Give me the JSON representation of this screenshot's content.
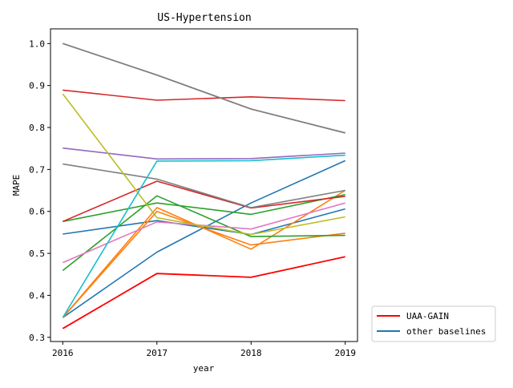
{
  "chart_data": {
    "type": "line",
    "title": "US-Hypertension",
    "xlabel": "year",
    "ylabel": "MAPE",
    "x": [
      2016,
      2017,
      2018,
      2019
    ],
    "xlim": [
      2015.87,
      2019.13
    ],
    "ylim": [
      0.29,
      1.035
    ],
    "yticks": [
      0.3,
      0.4,
      0.5,
      0.6,
      0.7,
      0.8,
      0.9,
      1.0
    ],
    "ytick_labels": [
      "0.3",
      "0.4",
      "0.5",
      "0.6",
      "0.7",
      "0.8",
      "0.9",
      "1.0"
    ],
    "xtick_labels": [
      "2016",
      "2017",
      "2018",
      "2019"
    ],
    "grid": false,
    "legend_placement": "outside-bottom-right",
    "legend": [
      {
        "label": "UAA-GAIN",
        "color": "#ff0000"
      },
      {
        "label": "other baselines",
        "color": "#1f77b4"
      }
    ],
    "series": [
      {
        "name": "UAA-GAIN",
        "color": "#ff0000",
        "values": [
          0.321,
          0.452,
          0.443,
          0.492
        ]
      },
      {
        "color": "#1f77b4",
        "values": [
          0.347,
          0.503,
          0.62,
          0.721
        ]
      },
      {
        "color": "#1f77b4",
        "values": [
          0.546,
          0.578,
          0.545,
          0.606
        ]
      },
      {
        "color": "#ff7f0e",
        "values": [
          0.347,
          0.609,
          0.51,
          0.65
        ]
      },
      {
        "color": "#ff7f0e",
        "values": [
          0.347,
          0.6,
          0.52,
          0.548
        ]
      },
      {
        "color": "#2ca02c",
        "values": [
          0.459,
          0.637,
          0.54,
          0.543
        ]
      },
      {
        "color": "#2ca02c",
        "values": [
          0.576,
          0.62,
          0.593,
          0.64
        ]
      },
      {
        "color": "#d62728",
        "values": [
          0.889,
          0.865,
          0.873,
          0.864
        ]
      },
      {
        "color": "#d62728",
        "values": [
          0.576,
          0.672,
          0.608,
          0.636
        ]
      },
      {
        "color": "#9467bd",
        "values": [
          0.751,
          0.725,
          0.726,
          0.739
        ]
      },
      {
        "color": "#8c564b",
        "values": [
          1.0,
          0.925,
          0.844,
          0.787
        ]
      },
      {
        "color": "#e377c2",
        "values": [
          0.478,
          0.575,
          0.558,
          0.62
        ]
      },
      {
        "color": "#7f7f7f",
        "values": [
          0.713,
          0.677,
          0.609,
          0.65
        ]
      },
      {
        "color": "#7f7f7f",
        "values": [
          1.0,
          0.925,
          0.844,
          0.787
        ]
      },
      {
        "color": "#bcbd22",
        "values": [
          0.88,
          0.585,
          0.545,
          0.587
        ]
      },
      {
        "color": "#17becf",
        "values": [
          0.347,
          0.72,
          0.721,
          0.734
        ]
      }
    ]
  }
}
